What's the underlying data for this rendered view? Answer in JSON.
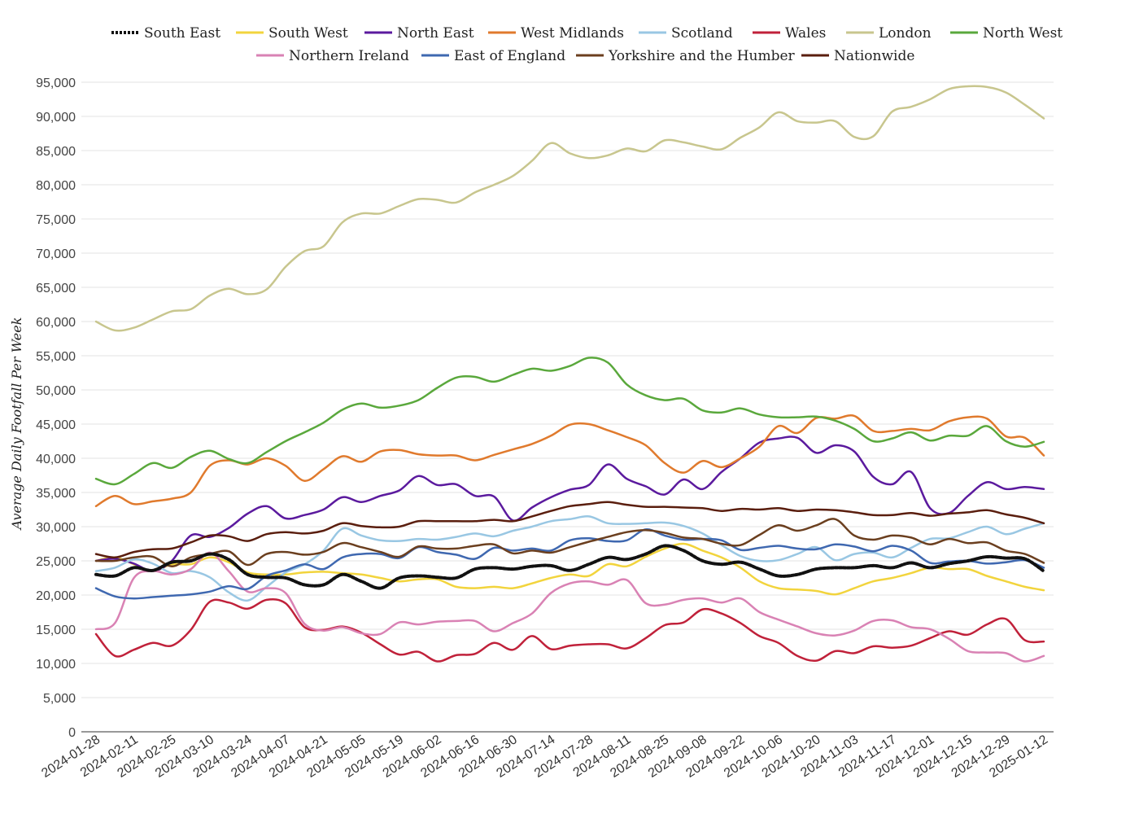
{
  "chart_data": {
    "type": "line",
    "title": "",
    "xlabel": "",
    "ylabel": "Average Daily Footfall Per Week",
    "ylim": [
      0,
      95000
    ],
    "yticks": [
      0,
      5000,
      10000,
      15000,
      20000,
      25000,
      30000,
      35000,
      40000,
      45000,
      50000,
      55000,
      60000,
      65000,
      70000,
      75000,
      80000,
      85000,
      90000,
      95000
    ],
    "ytick_labels": [
      "0",
      "5,000",
      "10,000",
      "15,000",
      "20,000",
      "25,000",
      "30,000",
      "35,000",
      "40,000",
      "45,000",
      "50,000",
      "55,000",
      "60,000",
      "65,000",
      "70,000",
      "75,000",
      "80,000",
      "85,000",
      "90,000",
      "95,000"
    ],
    "grid": true,
    "legend_position": "top",
    "x": [
      "2024-01-28",
      "2024-02-04",
      "2024-02-11",
      "2024-02-18",
      "2024-02-25",
      "2024-03-03",
      "2024-03-10",
      "2024-03-17",
      "2024-03-24",
      "2024-03-31",
      "2024-04-07",
      "2024-04-14",
      "2024-04-21",
      "2024-04-28",
      "2024-05-05",
      "2024-05-12",
      "2024-05-19",
      "2024-05-26",
      "2024-06-02",
      "2024-06-09",
      "2024-06-16",
      "2024-06-23",
      "2024-06-30",
      "2024-07-07",
      "2024-07-14",
      "2024-07-21",
      "2024-07-28",
      "2024-08-04",
      "2024-08-11",
      "2024-08-18",
      "2024-08-25",
      "2024-09-01",
      "2024-09-08",
      "2024-09-15",
      "2024-09-22",
      "2024-09-29",
      "2024-10-06",
      "2024-10-13",
      "2024-10-20",
      "2024-10-27",
      "2024-11-03",
      "2024-11-10",
      "2024-11-17",
      "2024-11-24",
      "2024-12-01",
      "2024-12-08",
      "2024-12-15",
      "2024-12-22",
      "2024-12-29",
      "2025-01-05",
      "2025-01-12"
    ],
    "x_tick_labels": [
      "2024-01-28",
      "2024-02-11",
      "2024-02-25",
      "2024-03-10",
      "2024-03-24",
      "2024-04-07",
      "2024-04-21",
      "2024-05-05",
      "2024-05-19",
      "2024-06-02",
      "2024-06-16",
      "2024-06-30",
      "2024-07-14",
      "2024-07-28",
      "2024-08-11",
      "2024-08-25",
      "2024-09-08",
      "2024-09-22",
      "2024-10-06",
      "2024-10-20",
      "2024-11-03",
      "2024-11-17",
      "2024-12-01",
      "2024-12-15",
      "2024-12-29",
      "2025-01-12"
    ],
    "series": [
      {
        "name": "South East",
        "color": "#111111",
        "dashed": true,
        "values": [
          23000,
          22800,
          24000,
          23600,
          24800,
          25000,
          26000,
          25200,
          23000,
          22600,
          22500,
          21500,
          21500,
          23000,
          22000,
          21000,
          22500,
          22800,
          22600,
          22500,
          23800,
          24000,
          23800,
          24200,
          24300,
          23600,
          24500,
          25500,
          25200,
          26000,
          27200,
          26500,
          25000,
          24500,
          24800,
          23800,
          22800,
          23000,
          23800,
          24000,
          24000,
          24300,
          24000,
          24700,
          24000,
          24600,
          25000,
          25600,
          25400,
          25300,
          23500
        ]
      },
      {
        "name": "South West",
        "color": "#f2d43d",
        "values": [
          25000,
          25500,
          24500,
          23500,
          24500,
          24500,
          25500,
          24800,
          23300,
          23000,
          23000,
          23300,
          23400,
          23200,
          23000,
          22500,
          22000,
          22300,
          22300,
          21200,
          21000,
          21200,
          21000,
          21700,
          22500,
          23000,
          22800,
          24500,
          24200,
          25600,
          26800,
          27500,
          26500,
          25500,
          24000,
          22000,
          21000,
          20800,
          20600,
          20100,
          21000,
          22000,
          22500,
          23200,
          24000,
          23800,
          23800,
          22800,
          22000,
          21200,
          20700
        ]
      },
      {
        "name": "North East",
        "color": "#5b1a9e",
        "values": [
          25000,
          25300,
          24600,
          23500,
          25000,
          28700,
          28500,
          29800,
          31900,
          33000,
          31200,
          31700,
          32500,
          34300,
          33600,
          34500,
          35300,
          37400,
          36100,
          36200,
          34500,
          34400,
          30900,
          32800,
          34300,
          35400,
          36100,
          39100,
          37000,
          35900,
          34700,
          36900,
          35500,
          38000,
          40000,
          42300,
          42900,
          43000,
          40800,
          41900,
          41000,
          37300,
          36200,
          38000,
          32700,
          32000,
          34500,
          36500,
          35500,
          35800,
          35500
        ]
      },
      {
        "name": "West Midlands",
        "color": "#e07a2d",
        "values": [
          33000,
          34500,
          33300,
          33700,
          34100,
          35000,
          38900,
          39700,
          39100,
          40000,
          38900,
          36700,
          38400,
          40300,
          39500,
          41000,
          41200,
          40600,
          40400,
          40400,
          39700,
          40500,
          41300,
          42100,
          43300,
          44900,
          45000,
          44100,
          43100,
          41900,
          39300,
          37900,
          39600,
          38700,
          40000,
          41700,
          44700,
          43700,
          45900,
          45800,
          46200,
          44000,
          44000,
          44300,
          44100,
          45400,
          46000,
          45800,
          43200,
          43000,
          40400
        ]
      },
      {
        "name": "Scotland",
        "color": "#99c7e3",
        "values": [
          23500,
          24000,
          25200,
          24600,
          23200,
          23500,
          22600,
          20400,
          19200,
          21200,
          23300,
          24500,
          26500,
          29700,
          28700,
          28000,
          27900,
          28200,
          28100,
          28500,
          29000,
          28600,
          29400,
          30000,
          30800,
          31100,
          31500,
          30500,
          30400,
          30500,
          30600,
          30100,
          29000,
          27300,
          25700,
          25000,
          25100,
          26000,
          27000,
          25100,
          26000,
          26200,
          25500,
          26900,
          28200,
          28300,
          29200,
          30000,
          28900,
          29700,
          30500
        ]
      },
      {
        "name": "Wales",
        "color": "#c0213a",
        "values": [
          14300,
          11100,
          12000,
          13000,
          12600,
          14900,
          19000,
          18900,
          18000,
          19300,
          18800,
          15300,
          14900,
          15400,
          14500,
          12800,
          11300,
          11700,
          10300,
          11200,
          11400,
          13000,
          12000,
          14000,
          12100,
          12600,
          12800,
          12800,
          12200,
          13700,
          15600,
          16000,
          17900,
          17300,
          15900,
          14000,
          13000,
          11100,
          10400,
          11800,
          11500,
          12500,
          12300,
          12600,
          13700,
          14700,
          14200,
          15700,
          16500,
          13400,
          13200
        ]
      },
      {
        "name": "London",
        "color": "#c8c68e",
        "values": [
          60000,
          58700,
          59100,
          60300,
          61500,
          61800,
          63800,
          64800,
          64000,
          64700,
          68000,
          70300,
          71000,
          74500,
          75800,
          75800,
          76900,
          77900,
          77800,
          77400,
          78900,
          80000,
          81300,
          83500,
          86100,
          84600,
          83900,
          84300,
          85300,
          84900,
          86500,
          86200,
          85600,
          85200,
          86900,
          88400,
          90600,
          89300,
          89100,
          89300,
          87000,
          87100,
          90700,
          91400,
          92500,
          94000,
          94400,
          94300,
          93500,
          91700,
          89700
        ]
      },
      {
        "name": "North West",
        "color": "#5aa83c",
        "values": [
          37000,
          36200,
          37700,
          39300,
          38600,
          40200,
          41100,
          39900,
          39300,
          40900,
          42500,
          43800,
          45200,
          47100,
          48000,
          47400,
          47700,
          48500,
          50300,
          51800,
          51900,
          51200,
          52200,
          53100,
          52800,
          53500,
          54700,
          54000,
          50800,
          49200,
          48500,
          48700,
          47000,
          46700,
          47300,
          46400,
          46000,
          46000,
          46100,
          45500,
          44300,
          42500,
          42900,
          43800,
          42600,
          43300,
          43300,
          44700,
          42500,
          41700,
          42400
        ]
      },
      {
        "name": "Northern Ireland",
        "color": "#d982b4",
        "values": [
          15000,
          15900,
          22500,
          23500,
          23000,
          23800,
          26200,
          23500,
          20500,
          21000,
          20300,
          15800,
          14800,
          15300,
          14400,
          14300,
          16000,
          15700,
          16100,
          16200,
          16200,
          14700,
          15900,
          17300,
          20300,
          21700,
          22000,
          21500,
          22200,
          18800,
          18600,
          19300,
          19500,
          18900,
          19500,
          17500,
          16400,
          15400,
          14400,
          14100,
          14800,
          16200,
          16300,
          15300,
          15000,
          13600,
          11800,
          11600,
          11500,
          10300,
          11100
        ]
      },
      {
        "name": "East of England",
        "color": "#3f68b0",
        "values": [
          21000,
          19800,
          19500,
          19700,
          19900,
          20100,
          20500,
          21300,
          20900,
          22800,
          23600,
          24500,
          23800,
          25500,
          26000,
          26000,
          25400,
          27000,
          26300,
          25900,
          25300,
          26900,
          26500,
          26800,
          26500,
          28000,
          28300,
          27900,
          28000,
          29600,
          28700,
          28100,
          28200,
          28000,
          26600,
          26900,
          27200,
          26800,
          26700,
          27400,
          27100,
          26400,
          27200,
          26500,
          24700,
          24900,
          25000,
          24600,
          24800,
          25100,
          24000
        ]
      },
      {
        "name": "Yorkshire and the Humber",
        "color": "#6b3f1f",
        "values": [
          25000,
          25000,
          25500,
          25600,
          24200,
          25500,
          26000,
          26400,
          24400,
          26000,
          26300,
          25900,
          26300,
          27600,
          27000,
          26300,
          25600,
          27100,
          26800,
          26800,
          27200,
          27400,
          26100,
          26500,
          26200,
          27000,
          27800,
          28500,
          29200,
          29500,
          29100,
          28400,
          28200,
          27500,
          27300,
          28800,
          30200,
          29400,
          30200,
          31100,
          28700,
          28100,
          28700,
          28400,
          27400,
          28200,
          27600,
          27700,
          26500,
          26000,
          24700
        ]
      },
      {
        "name": "Nationwide",
        "color": "#5a1e0e",
        "values": [
          26000,
          25500,
          26300,
          26700,
          26800,
          27700,
          28700,
          28600,
          27900,
          28900,
          29200,
          29000,
          29400,
          30500,
          30100,
          29900,
          30000,
          30800,
          30800,
          30800,
          30800,
          31000,
          30800,
          31500,
          32300,
          33000,
          33300,
          33600,
          33200,
          32900,
          32900,
          32800,
          32700,
          32300,
          32600,
          32500,
          32700,
          32300,
          32500,
          32400,
          32100,
          31700,
          31700,
          32000,
          31600,
          31900,
          32100,
          32400,
          31800,
          31300,
          30500
        ]
      }
    ]
  }
}
